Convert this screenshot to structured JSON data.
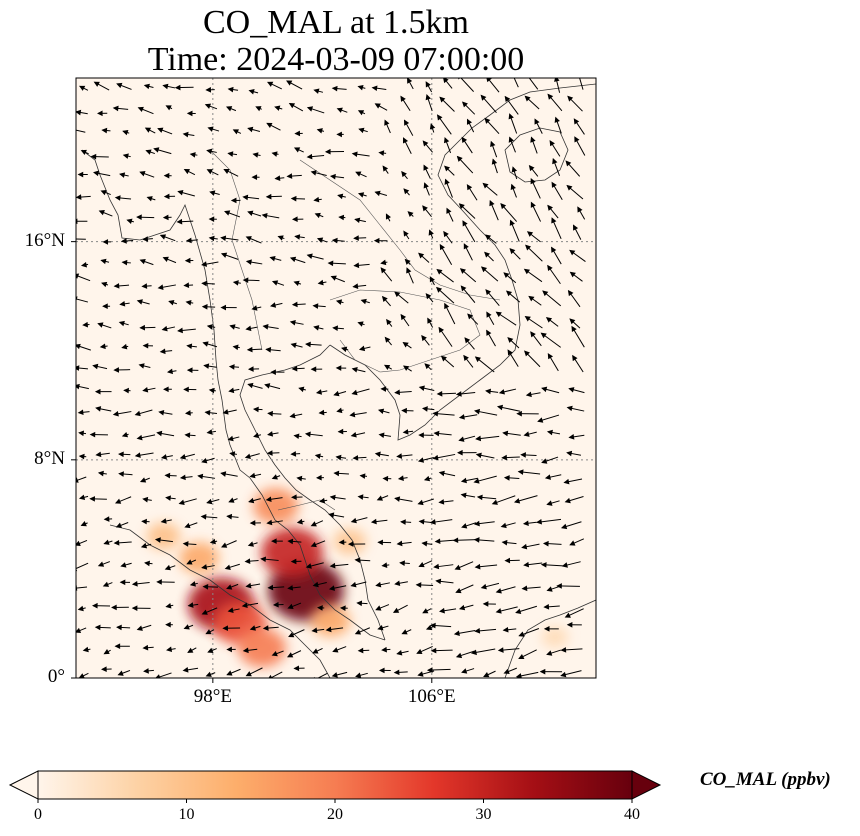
{
  "title": {
    "line1": "CO_MAL at 1.5km",
    "line2": "Time: 2024-03-09 07:00:00"
  },
  "map": {
    "extent": {
      "lon_min": 93,
      "lon_max": 112,
      "lat_min": 0,
      "lat_max": 22
    },
    "lat_ticks": [
      {
        "value": 0,
        "label": "0°"
      },
      {
        "value": 8,
        "label": "8°N"
      },
      {
        "value": 16,
        "label": "16°N"
      }
    ],
    "lon_ticks": [
      {
        "value": 98,
        "label": "98°E"
      },
      {
        "value": 106,
        "label": "106°E"
      }
    ],
    "gridlines": true,
    "field_name": "CO_MAL",
    "units": "ppbv",
    "hotspots": [
      {
        "lon": 98.3,
        "lat": 2.7,
        "value": 33
      },
      {
        "lon": 99.0,
        "lat": 2.0,
        "value": 24
      },
      {
        "lon": 101.4,
        "lat": 3.2,
        "value": 40
      },
      {
        "lon": 100.9,
        "lat": 4.6,
        "value": 30
      },
      {
        "lon": 100.3,
        "lat": 6.3,
        "value": 18
      },
      {
        "lon": 97.5,
        "lat": 4.4,
        "value": 14
      },
      {
        "lon": 96.2,
        "lat": 5.2,
        "value": 10
      },
      {
        "lon": 99.8,
        "lat": 1.1,
        "value": 20
      },
      {
        "lon": 102.3,
        "lat": 2.1,
        "value": 14
      },
      {
        "lon": 103.0,
        "lat": 5.0,
        "value": 9
      },
      {
        "lon": 110.5,
        "lat": 1.5,
        "value": 5
      }
    ]
  },
  "colorbar": {
    "min": 0,
    "max": 40,
    "ticks": [
      "0",
      "10",
      "20",
      "30",
      "40"
    ],
    "label": "CO_MAL (ppbv)",
    "colors": [
      "#fff5eb",
      "#fdd2a5",
      "#fdae6b",
      "#f67d52",
      "#e3372a",
      "#a50f15",
      "#67000d"
    ]
  },
  "colors": {
    "land_line": "#333333",
    "grid": "#888888",
    "arrow": "#000000"
  }
}
